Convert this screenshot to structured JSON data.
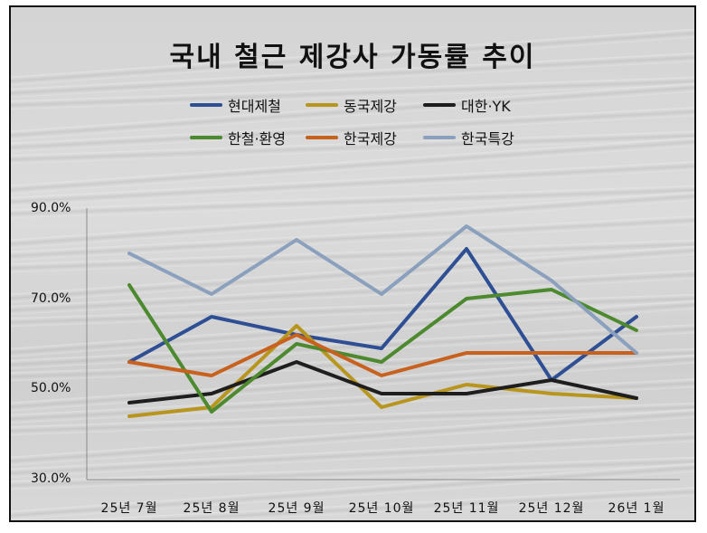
{
  "chart_data": {
    "type": "line",
    "title": "국내 철근 제강사 가동률 추이",
    "categories": [
      "25년 7월",
      "25년 8월",
      "25년 9월",
      "25년 10월",
      "25년 11월",
      "25년 12월",
      "26년 1월"
    ],
    "y_tick_labels": [
      "90.0%",
      "70.0%",
      "50.0%",
      "30.0%"
    ],
    "ylim": [
      30,
      90
    ],
    "grid": false,
    "legend_position": "top",
    "series": [
      {
        "name": "현대제철",
        "color": "#2f4f94",
        "values": [
          56,
          66,
          62,
          59,
          81,
          52,
          66
        ]
      },
      {
        "name": "동국제강",
        "color": "#b8961e",
        "values": [
          44,
          46,
          64,
          46,
          51,
          49,
          48
        ]
      },
      {
        "name": "대한·YK",
        "color": "#1e1e1e",
        "values": [
          47,
          49,
          56,
          49,
          49,
          52,
          48
        ]
      },
      {
        "name": "한철·환영",
        "color": "#4d8a2f",
        "values": [
          73,
          45,
          60,
          56,
          70,
          72,
          63
        ]
      },
      {
        "name": "한국제강",
        "color": "#c8601e",
        "values": [
          56,
          53,
          62,
          53,
          58,
          58,
          58
        ]
      },
      {
        "name": "한국특강",
        "color": "#8aa0bd",
        "values": [
          80,
          71,
          83,
          71,
          86,
          74,
          58
        ]
      }
    ]
  }
}
